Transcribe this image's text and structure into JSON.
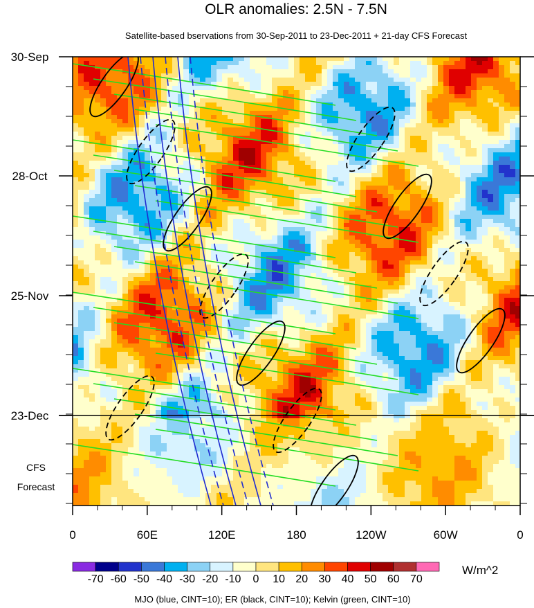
{
  "chart_data": {
    "type": "heatmap",
    "title": "OLR anomalies: 2.5N - 7.5N",
    "subtitle": "Satellite-based bservations from 30-Sep-2011 to 23-Dec-2011 + 21-day CFS Forecast",
    "x_ticks": [
      "0",
      "60E",
      "120E",
      "180",
      "120W",
      "60W",
      "0"
    ],
    "y_ticks": [
      "30-Sep",
      "28-Oct",
      "25-Nov",
      "23-Dec"
    ],
    "forecast_label": [
      "CFS",
      "Forecast"
    ],
    "colorbar": {
      "levels": [
        "-70",
        "-60",
        "-50",
        "-40",
        "-30",
        "-20",
        "-10",
        "0",
        "10",
        "20",
        "30",
        "40",
        "50",
        "60",
        "70"
      ],
      "colors": [
        "#8a2be2",
        "#00008b",
        "#2233cc",
        "#3a78d8",
        "#00b0f0",
        "#8cd2f5",
        "#d8f3ff",
        "#ffffcc",
        "#ffe57f",
        "#ffc000",
        "#ff8c00",
        "#ff4500",
        "#e00000",
        "#a00000",
        "#b03030",
        "#ff69b4"
      ],
      "units": "W/m^2"
    },
    "caption": "MJO (blue, CINT=10); ER (black, CINT=10); Kelvin (green, CINT=10)",
    "contour_colors": {
      "mjo": "#1e2bd0",
      "er": "#000000",
      "kelvin": "#22dd22"
    }
  }
}
